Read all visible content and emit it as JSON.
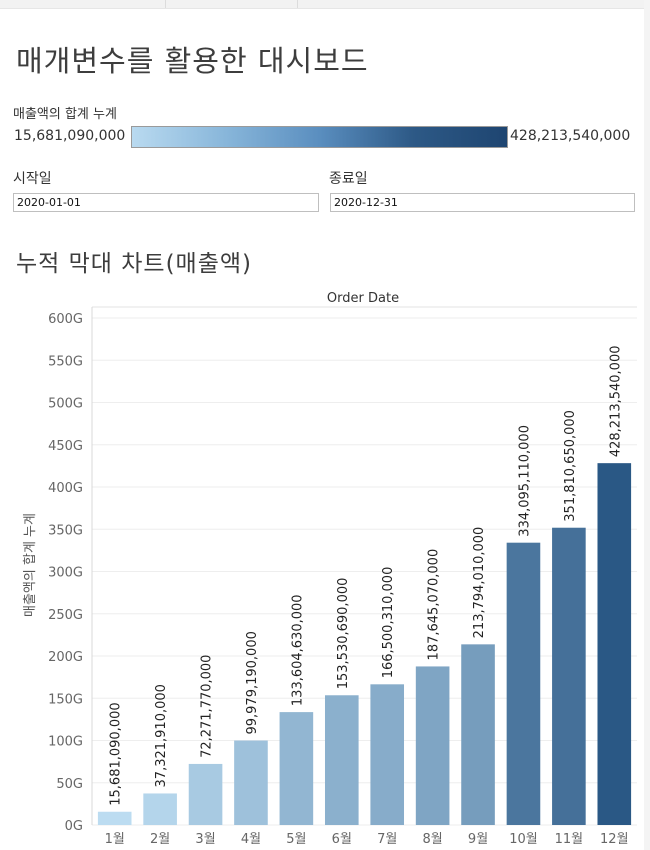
{
  "dashboard": {
    "title": "매개변수를 활용한 대시보드"
  },
  "legend": {
    "label": "매출액의 합계 누계",
    "min_label": "15,681,090,000",
    "max_label": "428,213,540,000",
    "gradient_colors": [
      "#b9daf0",
      "#88b6da",
      "#5a8ebf",
      "#2d5986",
      "#1e4571"
    ]
  },
  "filters": {
    "start_label": "시작일",
    "start_value": "2020-01-01",
    "end_label": "종료일",
    "end_value": "2020-12-31"
  },
  "chart_title": "누적 막대 차트(매출액)",
  "chart_data": {
    "type": "bar",
    "title": "Order Date",
    "xlabel": "",
    "ylabel": "매출액의 합계 누계",
    "categories": [
      "1월",
      "2월",
      "3월",
      "4월",
      "5월",
      "6월",
      "7월",
      "8월",
      "9월",
      "10월",
      "11월",
      "12월"
    ],
    "values": [
      15681090000,
      37321910000,
      72271770000,
      99979190000,
      133604630000,
      153530690000,
      166500310000,
      187645070000,
      213794010000,
      334095110000,
      351810650000,
      428213540000
    ],
    "value_labels": [
      "15,681,090,000",
      "37,321,910,000",
      "72,271,770,000",
      "99,979,190,000",
      "133,604,630,000",
      "153,530,690,000",
      "166,500,310,000",
      "187,645,070,000",
      "213,794,010,000",
      "334,095,110,000",
      "351,810,650,000",
      "428,213,540,000"
    ],
    "y_ticks": [
      0,
      50000000000,
      100000000000,
      150000000000,
      200000000000,
      250000000000,
      300000000000,
      350000000000,
      400000000000,
      450000000000,
      500000000000,
      550000000000,
      600000000000
    ],
    "y_tick_labels": [
      "0G",
      "50G",
      "100G",
      "150G",
      "200G",
      "250G",
      "300G",
      "350G",
      "400G",
      "450G",
      "500G",
      "550G",
      "600G"
    ],
    "ylim": [
      0,
      600000000000
    ],
    "color_min": "#bcdcf1",
    "color_max": "#2a5885",
    "grid": true
  }
}
